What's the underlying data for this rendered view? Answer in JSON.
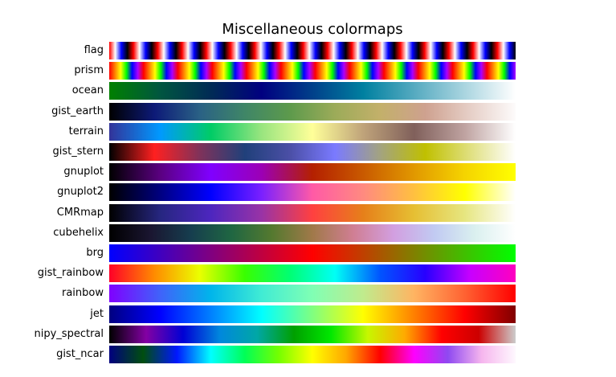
{
  "chart_data": {
    "type": "heatmap",
    "title": "Miscellaneous colormaps",
    "xlabel": "",
    "ylabel": "",
    "grid": false,
    "colormaps": [
      {
        "name": "flag",
        "stops": [
          "#ff0000",
          "#ffffff",
          "#0000ff",
          "#000000",
          "#ff0000",
          "#ffffff",
          "#0000ff",
          "#000000",
          "#ff0000",
          "#ffffff",
          "#0000ff",
          "#000000",
          "#ff0000",
          "#ffffff",
          "#0000ff",
          "#000000",
          "#ff0000",
          "#ffffff",
          "#0000ff",
          "#000000",
          "#ff0000",
          "#ffffff",
          "#0000ff",
          "#000000",
          "#ff0000",
          "#ffffff",
          "#0000ff",
          "#000000",
          "#ff0000",
          "#ffffff",
          "#0000ff",
          "#000000",
          "#ff0000",
          "#ffffff",
          "#0000ff",
          "#000000",
          "#ff0000",
          "#ffffff",
          "#0000ff",
          "#000000",
          "#ff0000",
          "#ffffff",
          "#0000ff",
          "#000000",
          "#ff0000",
          "#ffffff",
          "#0000ff",
          "#000000",
          "#ff0000",
          "#ffffff",
          "#0000ff",
          "#000000",
          "#ff0000",
          "#ffffff",
          "#0000ff",
          "#000000",
          "#ff0000",
          "#ffffff",
          "#0000ff",
          "#000000",
          "#ff0000",
          "#ffffff",
          "#0000ff",
          "#000000",
          "#ff0000",
          "#ffffff",
          "#0000ff",
          "#000000"
        ]
      },
      {
        "name": "prism",
        "stops": [
          "#ff0000",
          "#ff7f00",
          "#ffff00",
          "#00ff00",
          "#0000ff",
          "#aa00ff",
          "#ff0000",
          "#ff7f00",
          "#ffff00",
          "#00ff00",
          "#0000ff",
          "#aa00ff",
          "#ff0000",
          "#ff7f00",
          "#ffff00",
          "#00ff00",
          "#0000ff",
          "#aa00ff",
          "#ff0000",
          "#ff7f00",
          "#ffff00",
          "#00ff00",
          "#0000ff",
          "#aa00ff",
          "#ff0000",
          "#ff7f00",
          "#ffff00",
          "#00ff00",
          "#0000ff",
          "#aa00ff",
          "#ff0000",
          "#ff7f00",
          "#ffff00",
          "#00ff00",
          "#0000ff",
          "#aa00ff",
          "#ff0000",
          "#ff7f00",
          "#ffff00",
          "#00ff00",
          "#0000ff",
          "#aa00ff",
          "#ff0000",
          "#ff7f00",
          "#ffff00",
          "#00ff00",
          "#0000ff",
          "#aa00ff",
          "#ff0000",
          "#ff7f00",
          "#ffff00",
          "#00ff00",
          "#0000ff",
          "#aa00ff",
          "#ff0000",
          "#ff7f00",
          "#ffff00",
          "#00ff00",
          "#0000ff",
          "#aa00ff",
          "#ff0000",
          "#ff7f00",
          "#ffff00",
          "#00ff00",
          "#0000ff",
          "#aa00ff",
          "#ff0000",
          "#ff7f00",
          "#ffff00",
          "#00ff00",
          "#0000ff",
          "#aa00ff"
        ]
      },
      {
        "name": "ocean",
        "stops": [
          "#008000",
          "#005640",
          "#002b55",
          "#000080",
          "#00408a",
          "#0080a0",
          "#55aac0",
          "#aad5e0",
          "#ffffff"
        ]
      },
      {
        "name": "gist_earth",
        "stops": [
          "#000000",
          "#0d1a78",
          "#2a6185",
          "#3f8667",
          "#5d9a4c",
          "#9cab59",
          "#c3b06a",
          "#cea18f",
          "#e6cfc7",
          "#fdfbfb"
        ]
      },
      {
        "name": "terrain",
        "stops": [
          "#333399",
          "#0099ff",
          "#00cc66",
          "#99e57f",
          "#ffff99",
          "#bfa37a",
          "#80605b",
          "#bfa3a1",
          "#ffffff"
        ]
      },
      {
        "name": "gist_stern",
        "stops": [
          "#000000",
          "#ff2020",
          "#80325a",
          "#20407a",
          "#4b4fa6",
          "#7a7aff",
          "#a3a380",
          "#c0c000",
          "#e0e080",
          "#ffffff"
        ]
      },
      {
        "name": "gnuplot",
        "stops": [
          "#000000",
          "#5a0080",
          "#8000ff",
          "#9c00b5",
          "#b42000",
          "#c95a00",
          "#e19800",
          "#f5d400",
          "#ffff00"
        ]
      },
      {
        "name": "gnuplot2",
        "stops": [
          "#000000",
          "#000080",
          "#0000ff",
          "#7a20ff",
          "#ff5aa6",
          "#ff8a80",
          "#ffc040",
          "#ffff00",
          "#ffffff"
        ]
      },
      {
        "name": "CMRmap",
        "stops": [
          "#000000",
          "#262680",
          "#4d26bf",
          "#9933a6",
          "#ff4040",
          "#e6801a",
          "#e6bf33",
          "#e6e680",
          "#ffffff"
        ]
      },
      {
        "name": "cubehelix",
        "stops": [
          "#000000",
          "#1a1530",
          "#163d4e",
          "#1f6642",
          "#54792f",
          "#a07949",
          "#d07e93",
          "#d29fe0",
          "#c1caf2",
          "#daf0ef",
          "#ffffff"
        ]
      },
      {
        "name": "brg",
        "stops": [
          "#0000ff",
          "#800080",
          "#ff0000",
          "#808000",
          "#00ff00"
        ]
      },
      {
        "name": "gist_rainbow",
        "stops": [
          "#ff0028",
          "#ff8b00",
          "#ebff00",
          "#39ff00",
          "#00ff73",
          "#00fff5",
          "#0054ff",
          "#2800ff",
          "#c800ff",
          "#ff00bf"
        ]
      },
      {
        "name": "rainbow",
        "stops": [
          "#8000ff",
          "#4062fa",
          "#00b5eb",
          "#40ecd4",
          "#80ffb4",
          "#c0eb8d",
          "#ffb462",
          "#ff6232",
          "#ff0000"
        ]
      },
      {
        "name": "jet",
        "stops": [
          "#000080",
          "#0000ff",
          "#0080ff",
          "#00ffff",
          "#80ff80",
          "#ffff00",
          "#ff8000",
          "#ff0000",
          "#800000"
        ]
      },
      {
        "name": "nipy_spectral",
        "stops": [
          "#000000",
          "#8300a3",
          "#0000d5",
          "#0088dd",
          "#00a7a6",
          "#00a000",
          "#00e800",
          "#c7f700",
          "#ffaa00",
          "#ff0000",
          "#cc0000",
          "#cccccc"
        ]
      },
      {
        "name": "gist_ncar",
        "stops": [
          "#000080",
          "#004e0f",
          "#0017ff",
          "#00ffff",
          "#00ff57",
          "#74ff00",
          "#ffff00",
          "#ffa600",
          "#ff0000",
          "#fe00fe",
          "#8f49f1",
          "#f6b6ee",
          "#fef8fe"
        ]
      }
    ]
  }
}
